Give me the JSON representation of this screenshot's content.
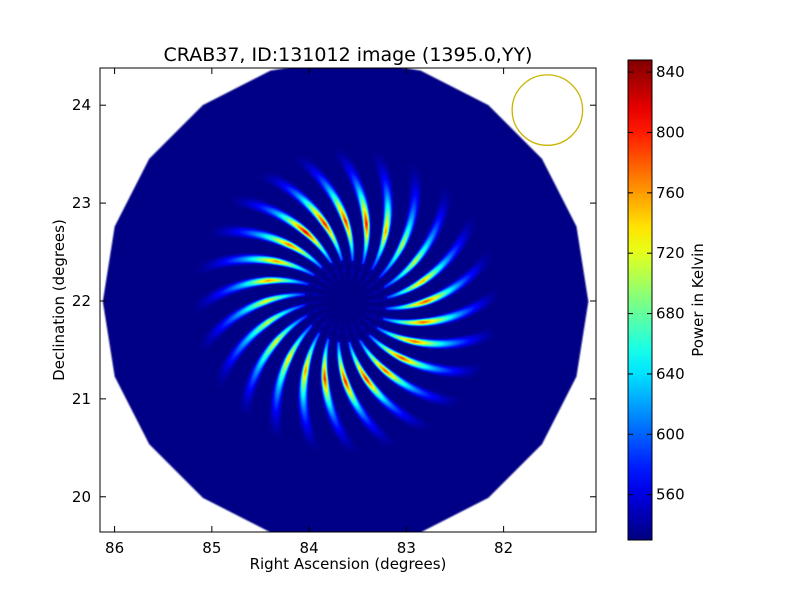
{
  "chart_data": {
    "type": "heatmap",
    "title": "CRAB37, ID:131012 image (1395.0,YY)",
    "xlabel": "Right Ascension (degrees)",
    "ylabel": "Declination (degrees)",
    "xlim": [
      86.15,
      81.05
    ],
    "ylim": [
      19.64,
      24.38
    ],
    "x_ticks": [
      86,
      85,
      84,
      83,
      82
    ],
    "y_ticks": [
      20,
      21,
      22,
      23,
      24
    ],
    "x_tick_labels": [
      "86",
      "85",
      "84",
      "83",
      "82"
    ],
    "y_tick_labels": [
      "20",
      "21",
      "22",
      "23",
      "24"
    ],
    "colormap": "jet",
    "colorbar": {
      "label": "Power in Kelvin",
      "range": [
        530,
        848
      ],
      "ticks": [
        560,
        600,
        640,
        680,
        720,
        760,
        800,
        840
      ],
      "tick_labels": [
        "560",
        "600",
        "640",
        "680",
        "720",
        "760",
        "800",
        "840"
      ]
    },
    "image": {
      "center_ra": 83.63,
      "center_dec": 22.0,
      "disk_radius_deg": 2.48,
      "background_value": 532,
      "petal_count": 24,
      "petal_inner_radius_deg": 0.3,
      "petal_peak_radius_deg": 0.82,
      "petal_outer_radius_deg": 1.38,
      "petal_peak_range": [
        700,
        845
      ],
      "hot_spots": [
        {
          "ra": 83.95,
          "dec": 22.68,
          "value": 845
        },
        {
          "ra": 83.45,
          "dec": 22.82,
          "value": 815
        },
        {
          "ra": 83.73,
          "dec": 22.7,
          "value": 800
        },
        {
          "ra": 83.72,
          "dec": 21.32,
          "value": 825
        },
        {
          "ra": 83.45,
          "dec": 21.28,
          "value": 805
        },
        {
          "ra": 83.1,
          "dec": 21.52,
          "value": 800
        },
        {
          "ra": 82.85,
          "dec": 21.95,
          "value": 790
        },
        {
          "ra": 84.35,
          "dec": 22.28,
          "value": 770
        }
      ]
    },
    "beam_circle": {
      "ra": 81.55,
      "dec": 23.95,
      "radius_deg": 0.36,
      "color": "#c8b400"
    },
    "grid": false,
    "legend": "none"
  }
}
